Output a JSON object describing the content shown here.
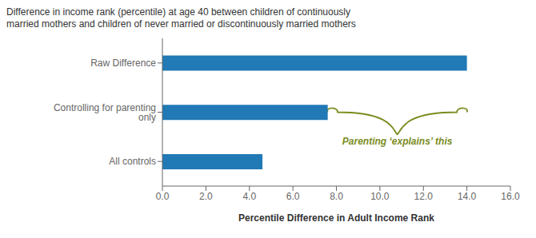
{
  "chart_data": {
    "type": "bar",
    "orientation": "horizontal",
    "title": "Difference in income rank (percentile) at age 40 between children of continuously",
    "subtitle": "married mothers and children of never married or discontinuously married mothers",
    "categories": [
      "All controls",
      "Controlling for parenting only",
      "Raw Difference"
    ],
    "values": [
      4.6,
      7.6,
      14.0
    ],
    "color": "#2179b5",
    "xlabel": "Percentile Difference in Adult Income Rank",
    "xlim": [
      0,
      16.0
    ],
    "xticks": [
      {
        "value": 0.0,
        "label": "0.0"
      },
      {
        "value": 2.0,
        "label": "2.0"
      },
      {
        "value": 4.0,
        "label": "4.0"
      },
      {
        "value": 6.0,
        "label": "6.0"
      },
      {
        "value": 8.0,
        "label": "8.0"
      },
      {
        "value": 10.0,
        "label": "10.0"
      },
      {
        "value": 12.0,
        "label": "12.0"
      },
      {
        "value": 14.0,
        "label": "14.0"
      },
      {
        "value": 16.0,
        "label": "16.0"
      }
    ],
    "grid": false,
    "annotations": [
      {
        "text": "Parenting ‘explains’ this",
        "color": "#7a8c1e"
      }
    ]
  }
}
